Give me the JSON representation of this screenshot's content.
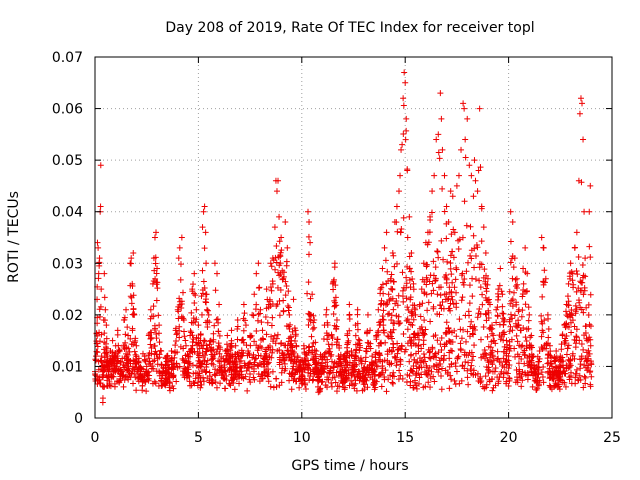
{
  "chart_data": {
    "type": "scatter",
    "title": "Day 208 of 2019, Rate Of TEC Index for receiver topl",
    "xlabel": "GPS time / hours",
    "ylabel": "ROTI / TECUs",
    "xlim": [
      0,
      25
    ],
    "ylim": [
      0,
      0.07
    ],
    "x_ticks": [
      "0",
      "5",
      "10",
      "15",
      "20",
      "25"
    ],
    "y_ticks": [
      "0",
      "0.01",
      "0.02",
      "0.03",
      "0.04",
      "0.05",
      "0.06",
      "0.07"
    ],
    "grid": true,
    "marker": "+",
    "color": "#ee0000",
    "series": [
      {
        "name": "ROTI",
        "points": [
          [
            0.0,
            0.009
          ],
          [
            0.05,
            0.012
          ],
          [
            0.1,
            0.023
          ],
          [
            0.12,
            0.034
          ],
          [
            0.15,
            0.033
          ],
          [
            0.18,
            0.028
          ],
          [
            0.2,
            0.03
          ],
          [
            0.22,
            0.031
          ],
          [
            0.25,
            0.04
          ],
          [
            0.27,
            0.041
          ],
          [
            0.28,
            0.049
          ],
          [
            0.3,
            0.025
          ],
          [
            0.32,
            0.012
          ],
          [
            0.35,
            0.008
          ],
          [
            0.38,
            0.003
          ],
          [
            0.4,
            0.006
          ],
          [
            0.42,
            0.019
          ],
          [
            0.45,
            0.028
          ],
          [
            0.5,
            0.021
          ],
          [
            0.55,
            0.018
          ],
          [
            0.6,
            0.012
          ],
          [
            0.65,
            0.009
          ],
          [
            0.7,
            0.007
          ],
          [
            0.75,
            0.013
          ],
          [
            0.8,
            0.011
          ],
          [
            0.85,
            0.015
          ],
          [
            0.9,
            0.008
          ],
          [
            0.95,
            0.012
          ],
          [
            1.0,
            0.014
          ],
          [
            1.05,
            0.01
          ],
          [
            1.1,
            0.017
          ],
          [
            1.2,
            0.013
          ],
          [
            1.3,
            0.009
          ],
          [
            1.4,
            0.019
          ],
          [
            1.5,
            0.021
          ],
          [
            1.6,
            0.016
          ],
          [
            1.65,
            0.011
          ],
          [
            1.7,
            0.03
          ],
          [
            1.75,
            0.031
          ],
          [
            1.8,
            0.026
          ],
          [
            1.85,
            0.032
          ],
          [
            1.9,
            0.02
          ],
          [
            2.0,
            0.014
          ],
          [
            2.1,
            0.011
          ],
          [
            2.2,
            0.009
          ],
          [
            2.3,
            0.007
          ],
          [
            2.4,
            0.012
          ],
          [
            2.5,
            0.01
          ],
          [
            2.6,
            0.016
          ],
          [
            2.7,
            0.021
          ],
          [
            2.8,
            0.026
          ],
          [
            2.85,
            0.031
          ],
          [
            2.9,
            0.035
          ],
          [
            2.95,
            0.036
          ],
          [
            3.0,
            0.029
          ],
          [
            3.1,
            0.018
          ],
          [
            3.2,
            0.013
          ],
          [
            3.3,
            0.009
          ],
          [
            3.4,
            0.007
          ],
          [
            3.5,
            0.011
          ],
          [
            3.6,
            0.008
          ],
          [
            3.7,
            0.013
          ],
          [
            3.8,
            0.01
          ],
          [
            3.9,
            0.017
          ],
          [
            4.0,
            0.021
          ],
          [
            4.05,
            0.031
          ],
          [
            4.1,
            0.033
          ],
          [
            4.2,
            0.035
          ],
          [
            4.3,
            0.019
          ],
          [
            4.4,
            0.014
          ],
          [
            4.5,
            0.012
          ],
          [
            4.6,
            0.016
          ],
          [
            4.7,
            0.025
          ],
          [
            4.8,
            0.028
          ],
          [
            4.9,
            0.021
          ],
          [
            5.0,
            0.018
          ],
          [
            5.1,
            0.015
          ],
          [
            5.2,
            0.037
          ],
          [
            5.25,
            0.04
          ],
          [
            5.3,
            0.041
          ],
          [
            5.35,
            0.036
          ],
          [
            5.4,
            0.024
          ],
          [
            5.5,
            0.02
          ],
          [
            5.6,
            0.015
          ],
          [
            5.7,
            0.012
          ],
          [
            5.8,
            0.03
          ],
          [
            5.9,
            0.028
          ],
          [
            6.0,
            0.022
          ],
          [
            6.1,
            0.011
          ],
          [
            6.2,
            0.009
          ],
          [
            6.3,
            0.013
          ],
          [
            6.4,
            0.016
          ],
          [
            6.5,
            0.012
          ],
          [
            6.6,
            0.017
          ],
          [
            6.7,
            0.01
          ],
          [
            6.8,
            0.014
          ],
          [
            6.9,
            0.019
          ],
          [
            7.0,
            0.011
          ],
          [
            7.1,
            0.015
          ],
          [
            7.2,
            0.022
          ],
          [
            7.3,
            0.018
          ],
          [
            7.4,
            0.013
          ],
          [
            7.5,
            0.016
          ],
          [
            7.6,
            0.02
          ],
          [
            7.7,
            0.024
          ],
          [
            7.8,
            0.028
          ],
          [
            7.9,
            0.03
          ],
          [
            8.0,
            0.021
          ],
          [
            8.1,
            0.017
          ],
          [
            8.2,
            0.012
          ],
          [
            8.3,
            0.025
          ],
          [
            8.4,
            0.022
          ],
          [
            8.5,
            0.03
          ],
          [
            8.6,
            0.031
          ],
          [
            8.7,
            0.037
          ],
          [
            8.75,
            0.046
          ],
          [
            8.8,
            0.044
          ],
          [
            8.85,
            0.046
          ],
          [
            8.9,
            0.039
          ],
          [
            9.0,
            0.035
          ],
          [
            9.1,
            0.027
          ],
          [
            9.2,
            0.038
          ],
          [
            9.3,
            0.033
          ],
          [
            9.4,
            0.02
          ],
          [
            9.5,
            0.015
          ],
          [
            9.6,
            0.023
          ],
          [
            9.7,
            0.017
          ],
          [
            9.8,
            0.012
          ],
          [
            9.9,
            0.009
          ],
          [
            10.0,
            0.007
          ],
          [
            10.1,
            0.014
          ],
          [
            10.2,
            0.011
          ],
          [
            10.3,
            0.04
          ],
          [
            10.35,
            0.038
          ],
          [
            10.4,
            0.034
          ],
          [
            10.5,
            0.024
          ],
          [
            10.6,
            0.019
          ],
          [
            10.7,
            0.013
          ],
          [
            10.8,
            0.005
          ],
          [
            10.9,
            0.009
          ],
          [
            11.0,
            0.012
          ],
          [
            11.1,
            0.018
          ],
          [
            11.2,
            0.021
          ],
          [
            11.3,
            0.016
          ],
          [
            11.4,
            0.012
          ],
          [
            11.5,
            0.026
          ],
          [
            11.6,
            0.03
          ],
          [
            11.7,
            0.019
          ],
          [
            11.8,
            0.014
          ],
          [
            11.9,
            0.009
          ],
          [
            12.0,
            0.006
          ],
          [
            12.1,
            0.011
          ],
          [
            12.2,
            0.016
          ],
          [
            12.3,
            0.022
          ],
          [
            12.4,
            0.013
          ],
          [
            12.5,
            0.009
          ],
          [
            12.6,
            0.018
          ],
          [
            12.7,
            0.021
          ],
          [
            12.8,
            0.015
          ],
          [
            12.9,
            0.011
          ],
          [
            13.0,
            0.007
          ],
          [
            13.1,
            0.013
          ],
          [
            13.2,
            0.02
          ],
          [
            13.3,
            0.017
          ],
          [
            13.4,
            0.012
          ],
          [
            13.5,
            0.009
          ],
          [
            13.6,
            0.016
          ],
          [
            13.7,
            0.021
          ],
          [
            13.8,
            0.025
          ],
          [
            13.9,
            0.029
          ],
          [
            14.0,
            0.033
          ],
          [
            14.1,
            0.036
          ],
          [
            14.2,
            0.024
          ],
          [
            14.3,
            0.027
          ],
          [
            14.4,
            0.032
          ],
          [
            14.5,
            0.038
          ],
          [
            14.6,
            0.041
          ],
          [
            14.7,
            0.044
          ],
          [
            14.75,
            0.047
          ],
          [
            14.8,
            0.052
          ],
          [
            14.85,
            0.053
          ],
          [
            14.9,
            0.062
          ],
          [
            14.95,
            0.067
          ],
          [
            15.0,
            0.065
          ],
          [
            15.05,
            0.058
          ],
          [
            15.1,
            0.048
          ],
          [
            15.2,
            0.039
          ],
          [
            15.3,
            0.032
          ],
          [
            15.4,
            0.026
          ],
          [
            15.5,
            0.02
          ],
          [
            15.6,
            0.016
          ],
          [
            15.7,
            0.022
          ],
          [
            15.8,
            0.025
          ],
          [
            15.9,
            0.03
          ],
          [
            16.0,
            0.034
          ],
          [
            16.1,
            0.036
          ],
          [
            16.2,
            0.039
          ],
          [
            16.3,
            0.044
          ],
          [
            16.4,
            0.047
          ],
          [
            16.5,
            0.054
          ],
          [
            16.6,
            0.055
          ],
          [
            16.7,
            0.063
          ],
          [
            16.75,
            0.058
          ],
          [
            16.8,
            0.052
          ],
          [
            16.9,
            0.047
          ],
          [
            17.0,
            0.041
          ],
          [
            17.1,
            0.038
          ],
          [
            17.2,
            0.044
          ],
          [
            17.3,
            0.043
          ],
          [
            17.4,
            0.036
          ],
          [
            17.5,
            0.045
          ],
          [
            17.6,
            0.047
          ],
          [
            17.7,
            0.052
          ],
          [
            17.8,
            0.061
          ],
          [
            17.85,
            0.06
          ],
          [
            17.9,
            0.054
          ],
          [
            18.0,
            0.058
          ],
          [
            18.1,
            0.049
          ],
          [
            18.2,
            0.047
          ],
          [
            18.3,
            0.043
          ],
          [
            18.35,
            0.05
          ],
          [
            18.4,
            0.046
          ],
          [
            18.5,
            0.044
          ],
          [
            18.55,
            0.048
          ],
          [
            18.6,
            0.06
          ],
          [
            18.7,
            0.041
          ],
          [
            18.8,
            0.037
          ],
          [
            18.9,
            0.032
          ],
          [
            19.0,
            0.027
          ],
          [
            19.1,
            0.022
          ],
          [
            19.2,
            0.018
          ],
          [
            19.3,
            0.015
          ],
          [
            19.4,
            0.021
          ],
          [
            19.5,
            0.025
          ],
          [
            19.6,
            0.029
          ],
          [
            19.7,
            0.024
          ],
          [
            19.8,
            0.019
          ],
          [
            19.9,
            0.015
          ],
          [
            20.0,
            0.012
          ],
          [
            20.1,
            0.04
          ],
          [
            20.2,
            0.038
          ],
          [
            20.3,
            0.031
          ],
          [
            20.4,
            0.027
          ],
          [
            20.5,
            0.021
          ],
          [
            20.6,
            0.017
          ],
          [
            20.7,
            0.029
          ],
          [
            20.8,
            0.033
          ],
          [
            20.9,
            0.028
          ],
          [
            21.0,
            0.02
          ],
          [
            21.1,
            0.016
          ],
          [
            21.2,
            0.012
          ],
          [
            21.3,
            0.009
          ],
          [
            21.4,
            0.007
          ],
          [
            21.5,
            0.013
          ],
          [
            21.6,
            0.035
          ],
          [
            21.7,
            0.033
          ],
          [
            21.8,
            0.027
          ],
          [
            21.9,
            0.02
          ],
          [
            22.0,
            0.014
          ],
          [
            22.1,
            0.01
          ],
          [
            22.2,
            0.008
          ],
          [
            22.3,
            0.013
          ],
          [
            22.4,
            0.009
          ],
          [
            22.5,
            0.012
          ],
          [
            22.6,
            0.016
          ],
          [
            22.7,
            0.018
          ],
          [
            22.8,
            0.022
          ],
          [
            22.9,
            0.026
          ],
          [
            23.0,
            0.03
          ],
          [
            23.1,
            0.028
          ],
          [
            23.2,
            0.033
          ],
          [
            23.3,
            0.036
          ],
          [
            23.4,
            0.046
          ],
          [
            23.45,
            0.059
          ],
          [
            23.5,
            0.062
          ],
          [
            23.55,
            0.061
          ],
          [
            23.6,
            0.054
          ],
          [
            23.65,
            0.04
          ],
          [
            23.7,
            0.031
          ],
          [
            23.8,
            0.015
          ],
          [
            23.85,
            0.012
          ],
          [
            23.9,
            0.04
          ],
          [
            23.95,
            0.045
          ],
          [
            24.0,
            0.008
          ]
        ],
        "background_band": [
          0.005,
          0.027
        ]
      }
    ]
  }
}
